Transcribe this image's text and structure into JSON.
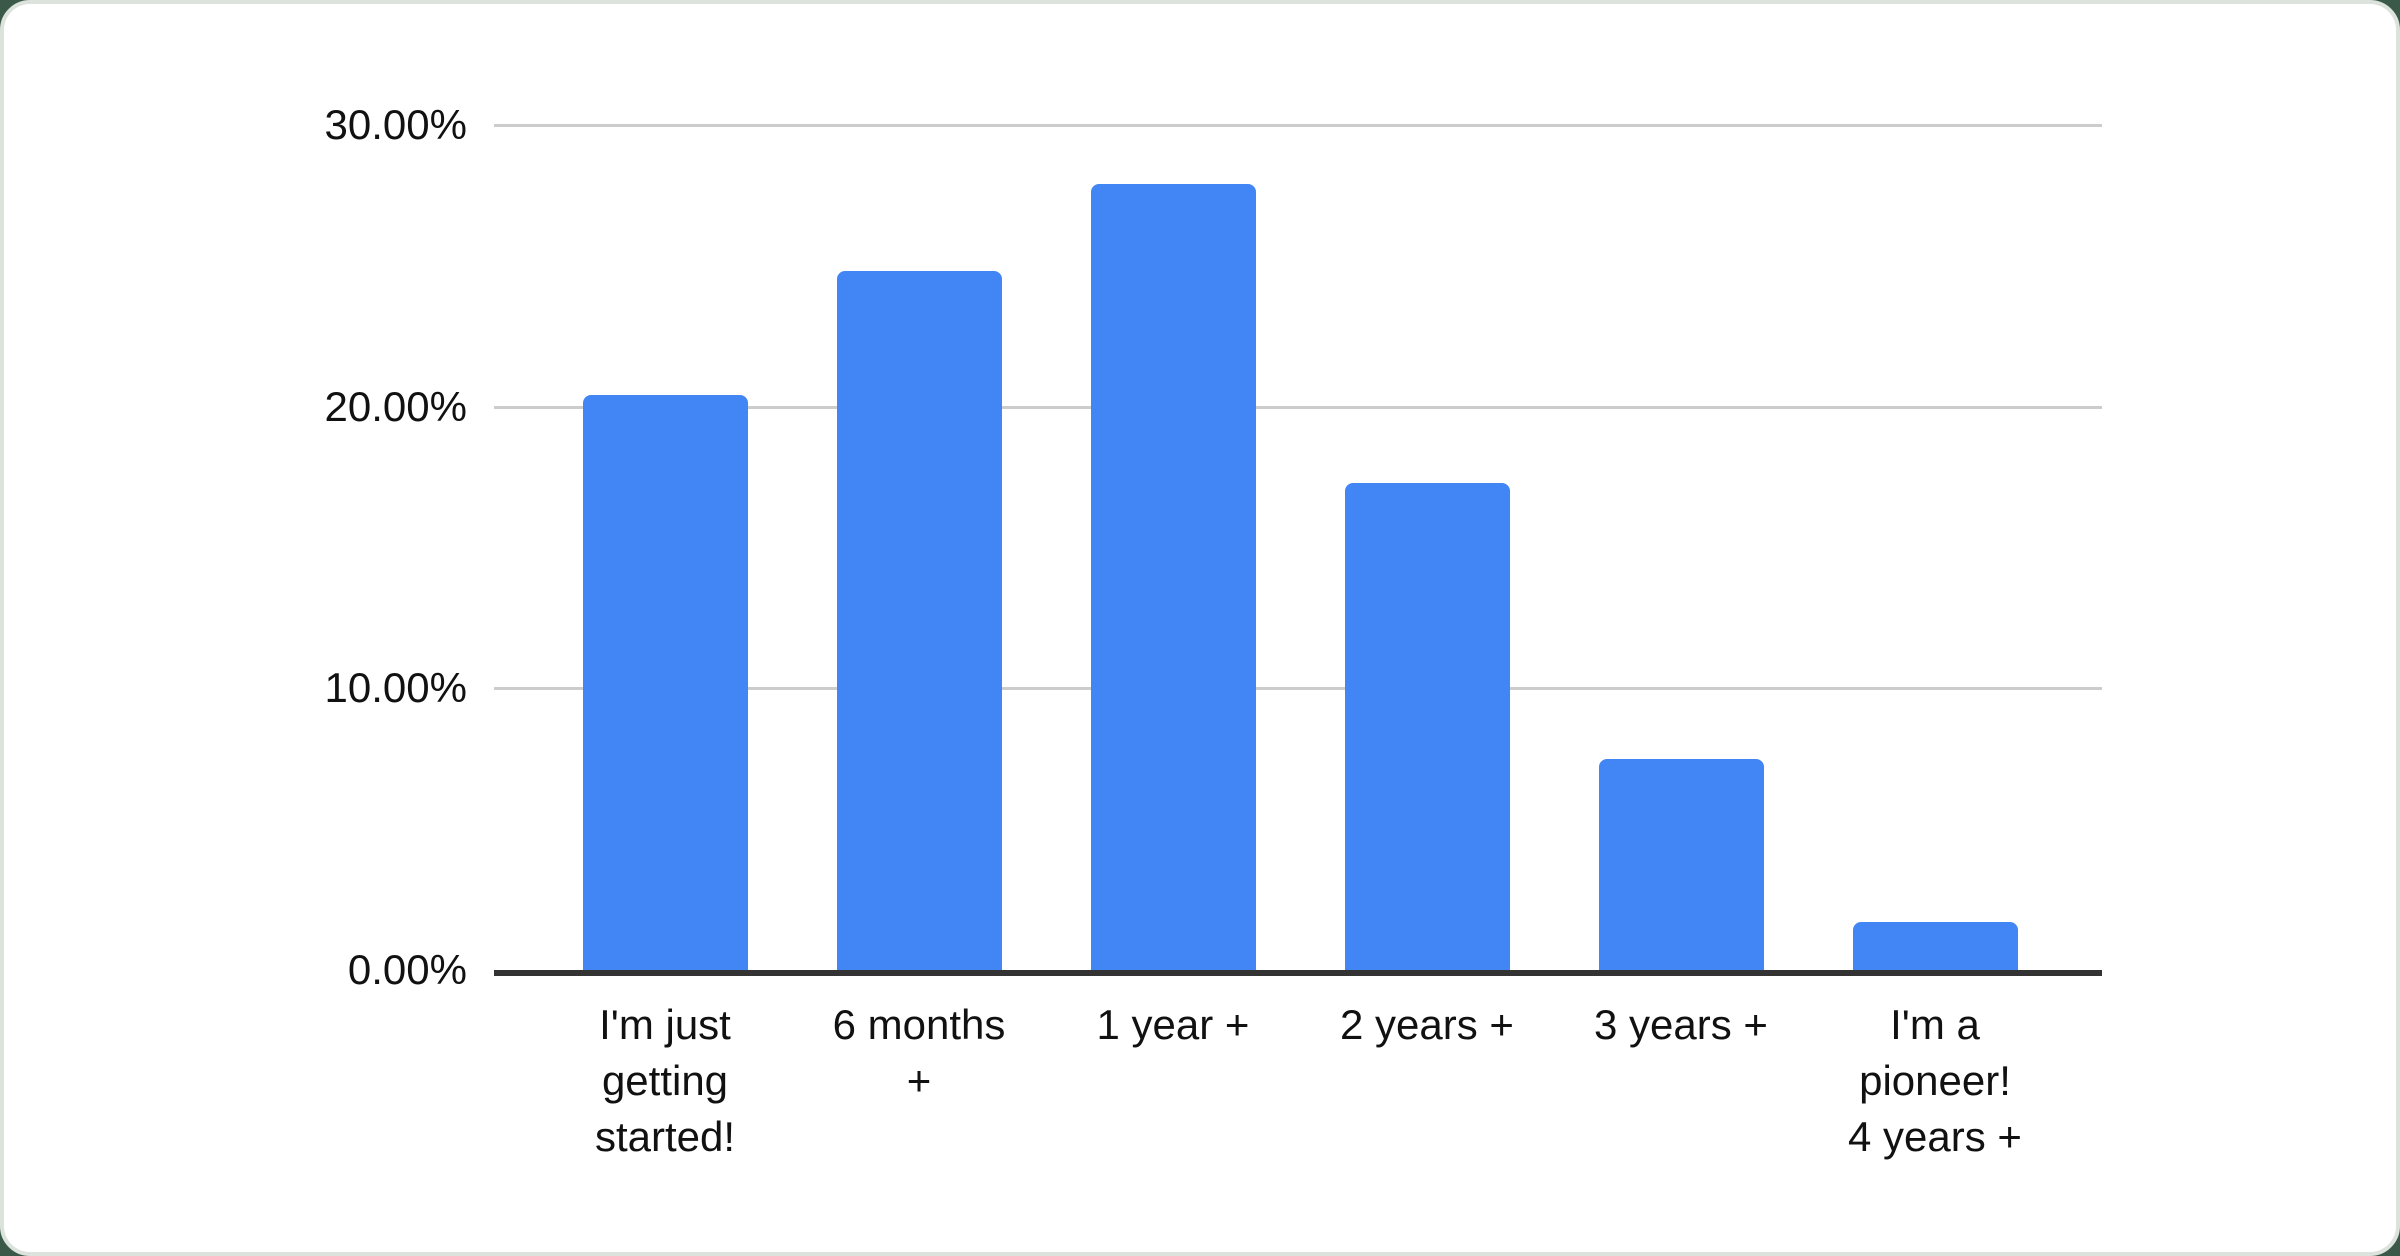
{
  "page": {
    "background_color": "#3b5948",
    "card_background_color": "#ffffff"
  },
  "chart_data": {
    "type": "bar",
    "title": "",
    "categories": [
      "I'm just getting started!",
      "6 months +",
      "1 year +",
      "2 years +",
      "3 years +",
      "I'm a pioneer! 4 years +"
    ],
    "values": [
      20.4,
      24.8,
      27.9,
      17.3,
      7.5,
      1.7
    ],
    "value_unit": "%",
    "y_ticks": [
      {
        "label": "30.00%",
        "value": 30
      },
      {
        "label": "20.00%",
        "value": 20
      },
      {
        "label": "10.00%",
        "value": 10
      },
      {
        "label": "0.00%",
        "value": 0
      }
    ],
    "ylim": [
      0,
      30
    ],
    "xlabel": "",
    "ylabel": "",
    "grid": true,
    "legend_position": "none",
    "bar_color": "#4285f4",
    "grid_color": "#cccccc",
    "axis_color": "#333333",
    "label_color": "#111111"
  }
}
